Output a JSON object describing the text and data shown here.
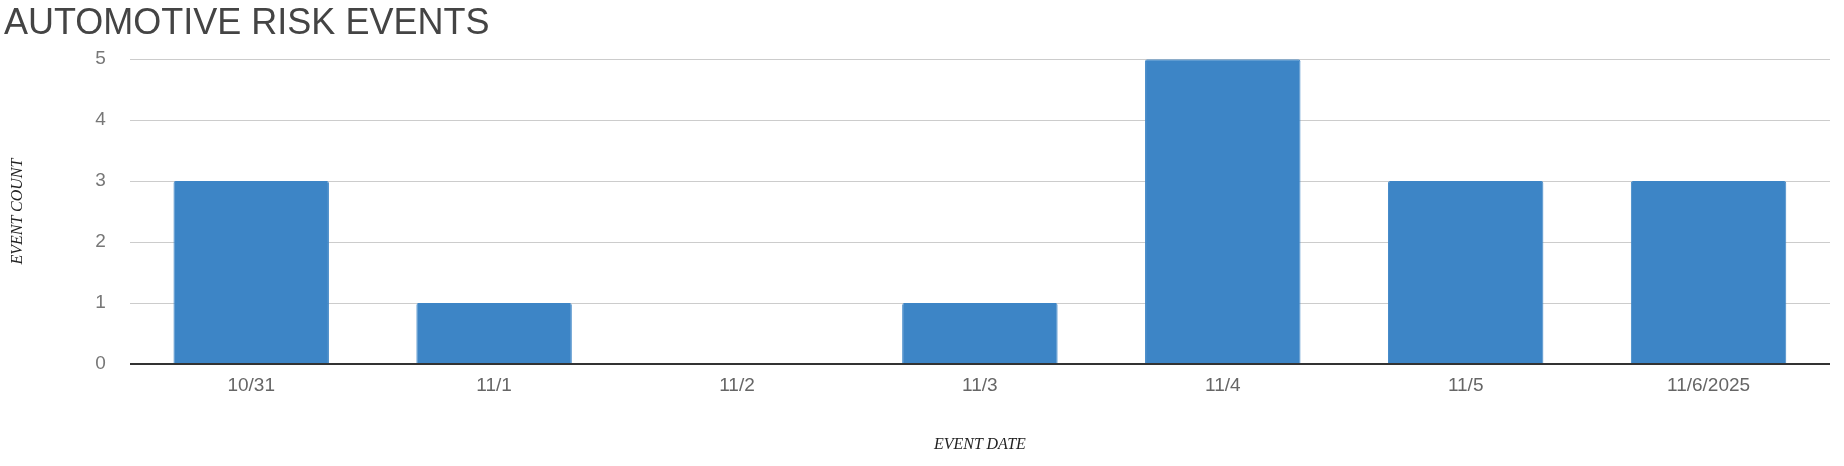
{
  "chart_data": {
    "type": "bar",
    "title": "AUTOMOTIVE RISK EVENTS",
    "xlabel": "EVENT DATE",
    "ylabel": "EVENT COUNT",
    "categories": [
      "10/31",
      "11/1",
      "11/2",
      "11/3",
      "11/4",
      "11/5",
      "11/6/2025"
    ],
    "series": [
      {
        "color": "#3d85c6",
        "values": [
          3,
          1,
          0,
          1,
          5,
          3,
          3
        ]
      }
    ],
    "ylim": [
      0,
      5
    ],
    "yticks": [
      0,
      1,
      2,
      3,
      4,
      5
    ],
    "grid": "y",
    "legend": false
  }
}
